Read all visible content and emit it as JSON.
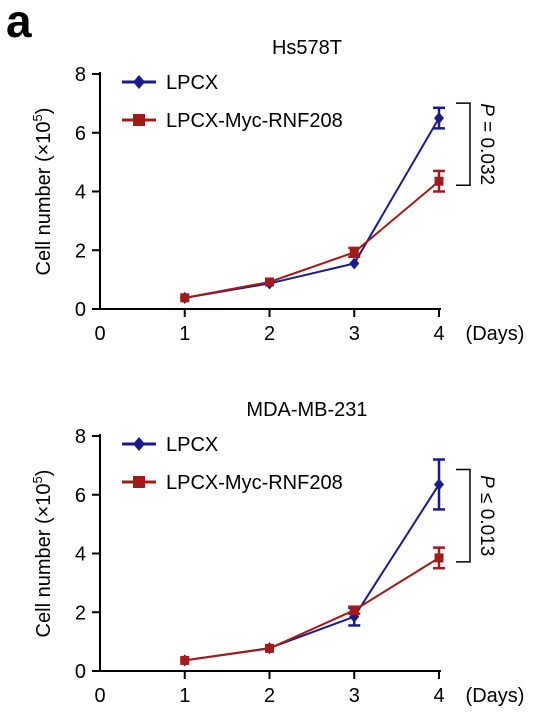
{
  "panel_label": "a",
  "colors": {
    "LPCX": "#1a1a8c",
    "LPCX-Myc-RNF208": "#a31a1a",
    "axis": "#000000"
  },
  "chart_data": [
    {
      "type": "line",
      "title": "Hs578T",
      "xlabel": "(Days)",
      "ylabel": "Cell number (×10",
      "ylabel_sup": "5",
      "ylabel_close": ")",
      "x_ticks": [
        "0",
        "1",
        "2",
        "3",
        "4"
      ],
      "y_ticks": [
        "0",
        "2",
        "4",
        "6",
        "8"
      ],
      "xlim": [
        0,
        4
      ],
      "ylim": [
        0,
        8
      ],
      "x": [
        1,
        2,
        3,
        4
      ],
      "series": [
        {
          "name": "LPCX",
          "marker": "diamond",
          "values": [
            0.38,
            0.87,
            1.55,
            6.5
          ],
          "errors": [
            0.05,
            0.05,
            0.07,
            0.35
          ]
        },
        {
          "name": "LPCX-Myc-RNF208",
          "marker": "square",
          "values": [
            0.38,
            0.92,
            1.93,
            4.35
          ],
          "errors": [
            0.05,
            0.06,
            0.15,
            0.35
          ]
        }
      ],
      "annotation": {
        "text": "P = 0.032",
        "prefix": "P",
        "rest": " = 0.032"
      },
      "legend": "top-left",
      "grid": false
    },
    {
      "type": "line",
      "title": "MDA-MB-231",
      "xlabel": "(Days)",
      "ylabel": "Cell number (×10",
      "ylabel_sup": "5",
      "ylabel_close": ")",
      "x_ticks": [
        "0",
        "1",
        "2",
        "3",
        "4"
      ],
      "y_ticks": [
        "0",
        "2",
        "4",
        "6",
        "8"
      ],
      "xlim": [
        0,
        4
      ],
      "ylim": [
        0,
        8
      ],
      "x": [
        1,
        2,
        3,
        4
      ],
      "series": [
        {
          "name": "LPCX",
          "marker": "diamond",
          "values": [
            0.36,
            0.78,
            1.85,
            6.35
          ],
          "errors": [
            0.04,
            0.05,
            0.3,
            0.85
          ]
        },
        {
          "name": "LPCX-Myc-RNF208",
          "marker": "square",
          "values": [
            0.36,
            0.77,
            2.07,
            3.85
          ],
          "errors": [
            0.04,
            0.05,
            0.12,
            0.35
          ]
        }
      ],
      "annotation": {
        "text": "P ≤ 0.013",
        "prefix": "P",
        "rest": " ≤ 0.013"
      },
      "legend": "top-left",
      "grid": false
    }
  ]
}
